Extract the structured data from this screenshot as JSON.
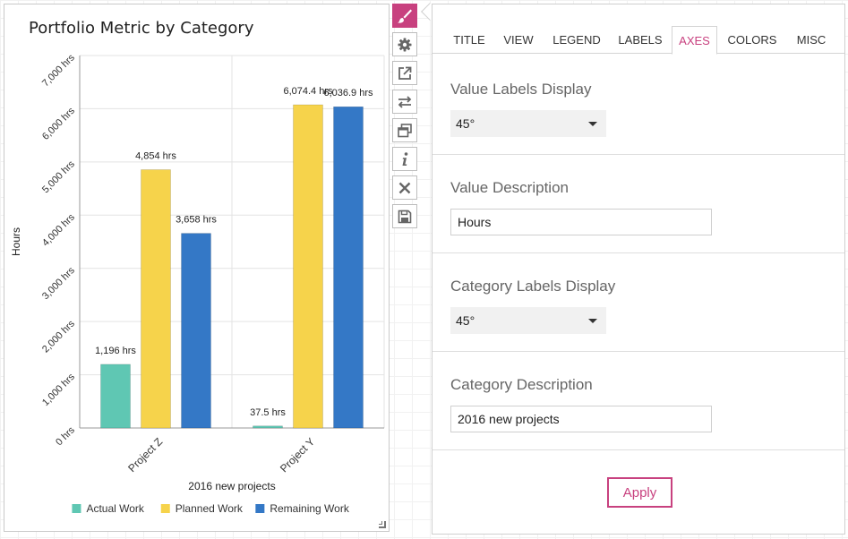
{
  "chart": {
    "title": "Portfolio Metric by Category"
  },
  "chart_data": {
    "type": "bar",
    "title": "Portfolio Metric by Category",
    "xlabel": "2016 new projects",
    "ylabel": "Hours",
    "categories": [
      "Project Z",
      "Project Y"
    ],
    "series": [
      {
        "name": "Actual Work",
        "color": "#5fc7b3",
        "values": [
          1196,
          37.5
        ],
        "labels": [
          "1,196 hrs",
          "37.5 hrs"
        ]
      },
      {
        "name": "Planned Work",
        "color": "#f6d34b",
        "values": [
          4854,
          6074.4
        ],
        "labels": [
          "4,854 hrs",
          "6,074.4 hrs"
        ]
      },
      {
        "name": "Remaining Work",
        "color": "#3478c6",
        "values": [
          3658,
          6036.9
        ],
        "labels": [
          "3,658 hrs",
          "6,036.9 hrs"
        ]
      }
    ],
    "ylim": [
      0,
      7000
    ],
    "yticks": [
      0,
      1000,
      2000,
      3000,
      4000,
      5000,
      6000,
      7000
    ],
    "ytick_labels": [
      "0 hrs",
      "1,000 hrs",
      "2,000 hrs",
      "3,000 hrs",
      "4,000 hrs",
      "5,000 hrs",
      "6,000 hrs",
      "7,000 hrs"
    ],
    "grid": true,
    "legend": "bottom",
    "tick_label_rotation": 45
  },
  "toolbar": {
    "items": [
      {
        "name": "paintbrush-icon",
        "active": true
      },
      {
        "name": "gear-icon",
        "active": false
      },
      {
        "name": "open-external-icon",
        "active": false
      },
      {
        "name": "swap-arrows-icon",
        "active": false
      },
      {
        "name": "duplicate-icon",
        "active": false
      },
      {
        "name": "info-icon",
        "active": false
      },
      {
        "name": "close-icon",
        "active": false
      },
      {
        "name": "save-icon",
        "active": false
      }
    ]
  },
  "panel": {
    "tabs": [
      "TITLE",
      "VIEW",
      "LEGEND",
      "LABELS",
      "AXES",
      "COLORS",
      "MISC"
    ],
    "active_tab": "AXES",
    "value_labels_display": {
      "label": "Value Labels Display",
      "value": "45°"
    },
    "value_description": {
      "label": "Value Description",
      "value": "Hours"
    },
    "category_labels_display": {
      "label": "Category Labels Display",
      "value": "45°"
    },
    "category_description": {
      "label": "Category Description",
      "value": "2016 new projects"
    },
    "apply_label": "Apply"
  },
  "colors": {
    "accent": "#c8417f"
  }
}
